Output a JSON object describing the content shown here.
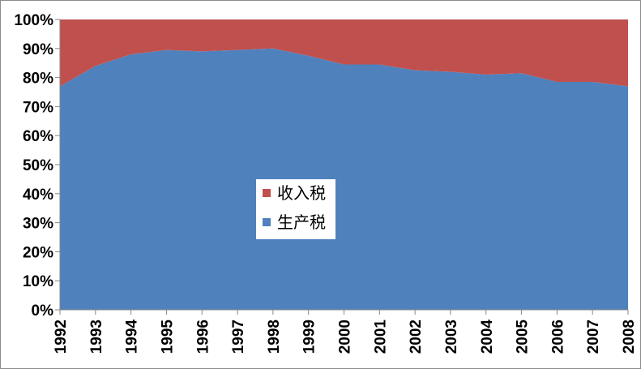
{
  "chart_data": {
    "type": "area",
    "stacked": "percent",
    "x": [
      "1992",
      "1993",
      "1994",
      "1995",
      "1996",
      "1997",
      "1998",
      "1999",
      "2000",
      "2001",
      "2002",
      "2003",
      "2004",
      "2005",
      "2006",
      "2007",
      "2008"
    ],
    "series": [
      {
        "name": "生产税",
        "color": "#4f81bd",
        "values": [
          77,
          84,
          88,
          89.5,
          89,
          89.5,
          90,
          87.5,
          84.5,
          84.5,
          82.5,
          82,
          81,
          81.5,
          78.5,
          78.5,
          77
        ]
      },
      {
        "name": "收入税",
        "color": "#c0504d",
        "values": [
          23,
          16,
          12,
          10.5,
          11,
          10.5,
          10,
          12.5,
          15.5,
          15.5,
          17.5,
          18,
          19,
          18.5,
          21.5,
          21.5,
          23
        ]
      }
    ],
    "y_ticks": [
      "0%",
      "10%",
      "20%",
      "30%",
      "40%",
      "50%",
      "60%",
      "70%",
      "80%",
      "90%",
      "100%"
    ],
    "ylim": [
      0,
      100
    ],
    "legend_position": "center",
    "legend_order": [
      "收入税",
      "生产税"
    ],
    "title": "",
    "xlabel": "",
    "ylabel": ""
  }
}
